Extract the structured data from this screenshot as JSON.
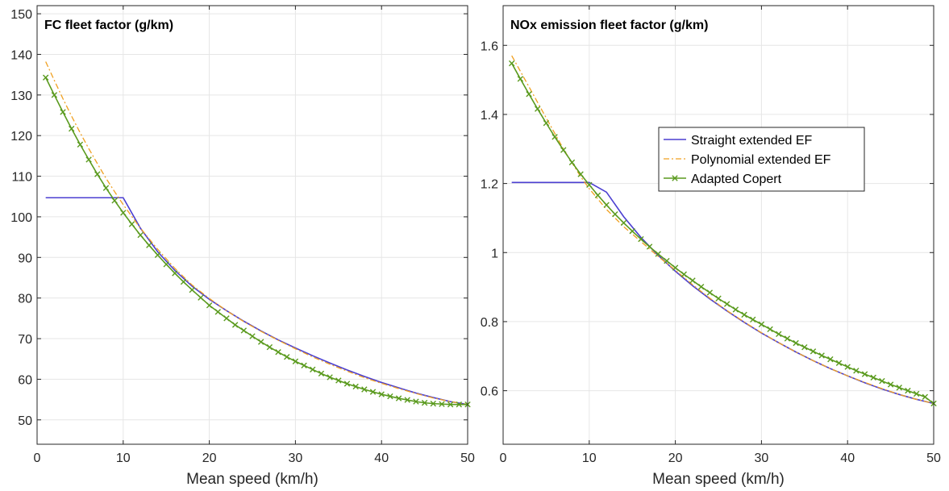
{
  "colors": {
    "straight": "#4b3fd1",
    "polynomial": "#f0a020",
    "copert": "#5a9a1e",
    "grid": "#e6e6e6",
    "axis": "#262626"
  },
  "chart_data": [
    {
      "type": "line",
      "title": "FC fleet factor (g/km)",
      "xlabel": "Mean speed (km/h)",
      "ylabel": "",
      "xlim": [
        0,
        50
      ],
      "ylim": [
        44,
        152
      ],
      "xticks": [
        0,
        10,
        20,
        30,
        40,
        50
      ],
      "yticks": [
        50,
        60,
        70,
        80,
        90,
        100,
        110,
        120,
        130,
        140,
        150
      ],
      "xtick_labels": [
        "0",
        "10",
        "20",
        "30",
        "40",
        "50"
      ],
      "ytick_labels": [
        "50",
        "60",
        "70",
        "80",
        "90",
        "100",
        "110",
        "120",
        "130",
        "140",
        "150"
      ],
      "grid": true,
      "legend": false,
      "series": [
        {
          "name": "Straight extended EF",
          "style": "solid",
          "x": [
            1,
            10,
            12,
            14,
            16,
            18,
            20,
            22,
            24,
            26,
            28,
            30,
            32,
            34,
            36,
            38,
            40,
            42,
            44,
            46,
            48,
            50
          ],
          "y": [
            104.7,
            104.7,
            97.2,
            91.4,
            86.8,
            82.9,
            79.7,
            76.9,
            74.3,
            71.9,
            69.7,
            67.7,
            65.8,
            64.0,
            62.3,
            60.7,
            59.2,
            57.9,
            56.6,
            55.5,
            54.5,
            53.8
          ]
        },
        {
          "name": "Polynomial extended EF",
          "style": "dashdot",
          "x": [
            1,
            2,
            3,
            4,
            5,
            6,
            7,
            8,
            9,
            10,
            12,
            14,
            16,
            18,
            20,
            22,
            24,
            26,
            28,
            30,
            32,
            34,
            36,
            38,
            40,
            42,
            44,
            46,
            48,
            50
          ],
          "y": [
            138.2,
            133.6,
            129.1,
            124.8,
            120.7,
            116.8,
            113.1,
            109.5,
            106.2,
            103.0,
            97.2,
            92.0,
            87.3,
            83.2,
            79.9,
            76.9,
            74.2,
            71.8,
            69.6,
            67.5,
            65.5,
            63.7,
            62.0,
            60.4,
            59.0,
            57.7,
            56.5,
            55.4,
            54.5,
            53.8
          ]
        },
        {
          "name": "Adapted Copert",
          "style": "solid-x",
          "x": [
            1,
            2,
            3,
            4,
            5,
            6,
            7,
            8,
            9,
            10,
            11,
            12,
            13,
            14,
            15,
            16,
            17,
            18,
            19,
            20,
            21,
            22,
            23,
            24,
            25,
            26,
            27,
            28,
            29,
            30,
            31,
            32,
            33,
            34,
            35,
            36,
            37,
            38,
            39,
            40,
            41,
            42,
            43,
            44,
            45,
            46,
            47,
            48,
            49,
            50
          ],
          "y": [
            134.3,
            130.0,
            125.8,
            121.7,
            117.8,
            114.1,
            110.5,
            107.1,
            104.0,
            101.0,
            98.2,
            95.5,
            93.0,
            90.6,
            88.3,
            86.1,
            84.0,
            82.0,
            80.1,
            78.2,
            76.6,
            75.0,
            73.4,
            72.0,
            70.6,
            69.2,
            67.9,
            66.7,
            65.5,
            64.4,
            63.4,
            62.4,
            61.4,
            60.5,
            59.7,
            58.9,
            58.2,
            57.5,
            56.9,
            56.3,
            55.8,
            55.3,
            54.9,
            54.5,
            54.2,
            54.0,
            53.9,
            53.8,
            53.8,
            53.8
          ]
        }
      ]
    },
    {
      "type": "line",
      "title": "NOx emission fleet factor (g/km)",
      "xlabel": "Mean speed (km/h)",
      "ylabel": "",
      "xlim": [
        0,
        50
      ],
      "ylim": [
        0.445,
        1.715
      ],
      "xticks": [
        0,
        10,
        20,
        30,
        40,
        50
      ],
      "yticks": [
        0.6,
        0.8,
        1.0,
        1.2,
        1.4,
        1.6
      ],
      "xtick_labels": [
        "0",
        "10",
        "20",
        "30",
        "40",
        "50"
      ],
      "ytick_labels": [
        "0.6",
        "0.8",
        "1",
        "1.2",
        "1.4",
        "1.6"
      ],
      "grid": true,
      "legend": true,
      "legend_position": "center-right",
      "series": [
        {
          "name": "Straight extended EF",
          "style": "solid",
          "x": [
            1,
            10,
            12,
            14,
            16,
            18,
            20,
            22,
            24,
            26,
            28,
            30,
            32,
            34,
            36,
            38,
            40,
            42,
            44,
            46,
            48,
            50
          ],
          "y": [
            1.203,
            1.203,
            1.175,
            1.104,
            1.044,
            0.992,
            0.946,
            0.904,
            0.866,
            0.831,
            0.798,
            0.767,
            0.739,
            0.712,
            0.687,
            0.664,
            0.643,
            0.623,
            0.605,
            0.589,
            0.575,
            0.563
          ]
        },
        {
          "name": "Polynomial extended EF",
          "style": "dashdot",
          "x": [
            1,
            2,
            3,
            4,
            5,
            6,
            7,
            8,
            9,
            10,
            12,
            14,
            16,
            18,
            20,
            22,
            24,
            26,
            28,
            30,
            32,
            34,
            36,
            38,
            40,
            42,
            44,
            46,
            48,
            50
          ],
          "y": [
            1.57,
            1.525,
            1.48,
            1.435,
            1.39,
            1.345,
            1.3,
            1.26,
            1.22,
            1.185,
            1.125,
            1.075,
            1.032,
            0.989,
            0.949,
            0.907,
            0.868,
            0.832,
            0.799,
            0.768,
            0.739,
            0.712,
            0.687,
            0.664,
            0.643,
            0.624,
            0.606,
            0.589,
            0.575,
            0.563
          ]
        },
        {
          "name": "Adapted Copert",
          "style": "solid-x",
          "x": [
            1,
            2,
            3,
            4,
            5,
            6,
            7,
            8,
            9,
            10,
            11,
            12,
            13,
            14,
            15,
            16,
            17,
            18,
            19,
            20,
            21,
            22,
            23,
            24,
            25,
            26,
            27,
            28,
            29,
            30,
            31,
            32,
            33,
            34,
            35,
            36,
            37,
            38,
            39,
            40,
            41,
            42,
            43,
            44,
            45,
            46,
            47,
            48,
            49,
            50
          ],
          "y": [
            1.548,
            1.503,
            1.459,
            1.416,
            1.375,
            1.335,
            1.297,
            1.261,
            1.227,
            1.196,
            1.166,
            1.138,
            1.111,
            1.086,
            1.062,
            1.039,
            1.017,
            0.996,
            0.976,
            0.956,
            0.937,
            0.919,
            0.901,
            0.884,
            0.867,
            0.851,
            0.835,
            0.82,
            0.806,
            0.792,
            0.778,
            0.764,
            0.751,
            0.738,
            0.726,
            0.714,
            0.702,
            0.691,
            0.68,
            0.669,
            0.658,
            0.648,
            0.638,
            0.628,
            0.618,
            0.609,
            0.6,
            0.591,
            0.582,
            0.563
          ]
        }
      ]
    }
  ]
}
